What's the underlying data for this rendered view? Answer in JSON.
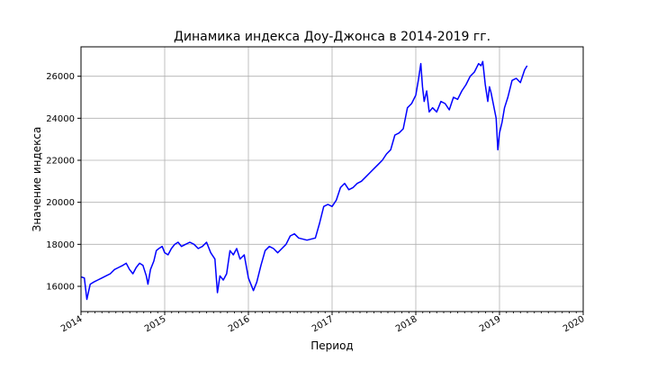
{
  "chart_data": {
    "type": "line",
    "title": "Динамика индекса Доу-Джонса в 2014-2019 гг.",
    "xlabel": "Период",
    "ylabel": "Значение индекса",
    "xlim": [
      2014.0,
      2020.0
    ],
    "ylim": [
      14800,
      27400
    ],
    "x_ticks": [
      "2014",
      "2015",
      "2016",
      "2017",
      "2018",
      "2019",
      "2020"
    ],
    "y_ticks": [
      16000,
      18000,
      20000,
      22000,
      24000,
      26000
    ],
    "grid": true,
    "line_color": "#0000ff",
    "series": [
      {
        "x": [
          2014.0,
          2014.04,
          2014.07,
          2014.11,
          2014.15,
          2014.2,
          2014.25,
          2014.3,
          2014.35,
          2014.4,
          2014.45,
          2014.5,
          2014.54,
          2014.58,
          2014.62,
          2014.66,
          2014.7,
          2014.74,
          2014.78,
          2014.8,
          2014.83,
          2014.87,
          2014.9,
          2014.93,
          2014.97,
          2015.0,
          2015.04,
          2015.08,
          2015.12,
          2015.16,
          2015.2,
          2015.25,
          2015.3,
          2015.35,
          2015.4,
          2015.45,
          2015.5,
          2015.55,
          2015.6,
          2015.63,
          2015.66,
          2015.7,
          2015.74,
          2015.78,
          2015.82,
          2015.86,
          2015.9,
          2015.95,
          2016.0,
          2016.03,
          2016.06,
          2016.1,
          2016.15,
          2016.2,
          2016.25,
          2016.3,
          2016.35,
          2016.4,
          2016.45,
          2016.5,
          2016.55,
          2016.6,
          2016.7,
          2016.8,
          2016.85,
          2016.9,
          2016.95,
          2017.0,
          2017.05,
          2017.1,
          2017.15,
          2017.2,
          2017.25,
          2017.3,
          2017.35,
          2017.4,
          2017.45,
          2017.5,
          2017.55,
          2017.6,
          2017.65,
          2017.7,
          2017.75,
          2017.8,
          2017.85,
          2017.9,
          2017.95,
          2018.0,
          2018.03,
          2018.06,
          2018.08,
          2018.1,
          2018.13,
          2018.16,
          2018.2,
          2018.25,
          2018.3,
          2018.35,
          2018.4,
          2018.45,
          2018.5,
          2018.55,
          2018.6,
          2018.65,
          2018.7,
          2018.75,
          2018.78,
          2018.8,
          2018.83,
          2018.86,
          2018.88,
          2018.9,
          2018.93,
          2018.96,
          2018.98,
          2019.0,
          2019.03,
          2019.06,
          2019.1,
          2019.15,
          2019.2,
          2019.25,
          2019.3,
          2019.33
        ],
        "y": [
          16450,
          16400,
          15380,
          16100,
          16200,
          16300,
          16400,
          16500,
          16600,
          16800,
          16900,
          17000,
          17100,
          16800,
          16600,
          16900,
          17100,
          17000,
          16500,
          16100,
          16800,
          17200,
          17700,
          17800,
          17900,
          17600,
          17500,
          17800,
          18000,
          18100,
          17900,
          18000,
          18100,
          18000,
          17800,
          17900,
          18100,
          17600,
          17300,
          15700,
          16500,
          16300,
          16600,
          17700,
          17500,
          17800,
          17300,
          17500,
          16400,
          16100,
          15800,
          16200,
          17000,
          17700,
          17900,
          17800,
          17600,
          17800,
          18000,
          18400,
          18500,
          18300,
          18200,
          18300,
          19000,
          19800,
          19900,
          19800,
          20100,
          20700,
          20900,
          20600,
          20700,
          20900,
          21000,
          21200,
          21400,
          21600,
          21800,
          22000,
          22300,
          22500,
          23200,
          23300,
          23500,
          24500,
          24700,
          25100,
          25800,
          26600,
          25500,
          24800,
          25300,
          24300,
          24500,
          24300,
          24800,
          24700,
          24400,
          25000,
          24900,
          25300,
          25600,
          26000,
          26200,
          26600,
          26500,
          26700,
          25600,
          24800,
          25500,
          25200,
          24600,
          24000,
          22500,
          23300,
          23800,
          24500,
          25000,
          25800,
          25900,
          25700,
          26300,
          26500
        ]
      }
    ]
  }
}
